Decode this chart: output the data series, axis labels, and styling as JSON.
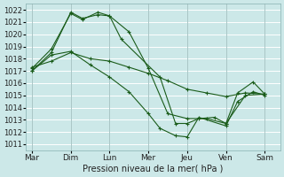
{
  "title": "",
  "xlabel": "Pression niveau de la mer( hPa )",
  "ylabel": "",
  "background_color": "#cce8e8",
  "grid_color": "#b0d8d8",
  "line_color": "#1a5c1a",
  "x_labels": [
    "Mar",
    "Dim",
    "Lun",
    "Mer",
    "Jeu",
    "Ven",
    "Sam"
  ],
  "x_ticks": [
    0,
    1,
    2,
    3,
    4,
    5,
    6
  ],
  "ylim": [
    1010.5,
    1022.5
  ],
  "yticks": [
    1011,
    1012,
    1013,
    1014,
    1015,
    1016,
    1017,
    1018,
    1019,
    1020,
    1021,
    1022
  ],
  "line1_x": [
    0.0,
    0.5,
    1.0,
    1.3,
    1.7,
    2.0,
    2.3,
    3.3,
    3.7,
    4.0,
    4.3,
    4.7,
    5.0,
    5.3,
    5.7,
    6.0
  ],
  "line1_y": [
    1017.0,
    1018.5,
    1021.8,
    1021.3,
    1021.6,
    1021.5,
    1019.6,
    1016.5,
    1012.7,
    1012.7,
    1013.1,
    1013.2,
    1012.7,
    1015.2,
    1016.1,
    1015.1
  ],
  "line2_x": [
    0.0,
    0.5,
    1.0,
    1.3,
    1.7,
    2.0,
    2.5,
    3.0,
    3.5,
    4.0,
    4.5,
    5.0,
    5.5,
    6.0
  ],
  "line2_y": [
    1017.2,
    1018.8,
    1021.7,
    1021.2,
    1021.8,
    1021.5,
    1020.2,
    1017.2,
    1013.5,
    1013.1,
    1013.1,
    1012.7,
    1015.0,
    1015.1
  ],
  "line3_x": [
    0.0,
    0.5,
    1.0,
    1.5,
    2.0,
    2.5,
    3.0,
    3.5,
    4.0,
    4.5,
    5.0,
    5.5,
    6.0
  ],
  "line3_y": [
    1017.3,
    1017.8,
    1018.5,
    1018.0,
    1017.8,
    1017.3,
    1016.8,
    1016.2,
    1015.5,
    1015.2,
    1014.9,
    1015.2,
    1015.1
  ],
  "line4_x": [
    0.0,
    0.5,
    1.0,
    1.5,
    2.0,
    2.5,
    3.0,
    3.3,
    3.7,
    4.0,
    4.3,
    5.0,
    5.3,
    5.7,
    6.0
  ],
  "line4_y": [
    1017.0,
    1018.3,
    1018.6,
    1017.5,
    1016.5,
    1015.3,
    1013.5,
    1012.3,
    1011.7,
    1011.6,
    1013.2,
    1012.5,
    1014.5,
    1015.3,
    1015.0
  ]
}
